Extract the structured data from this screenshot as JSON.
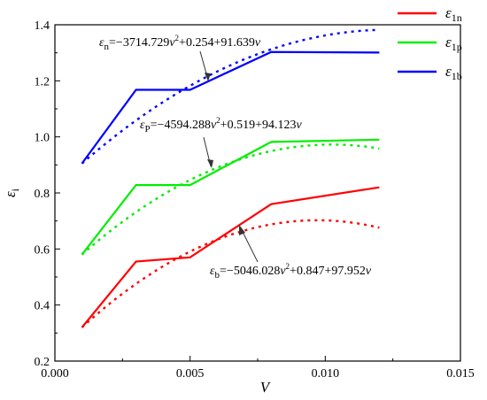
{
  "chart_data": {
    "type": "line",
    "xlabel": "V",
    "ylabel": {
      "base": "ε",
      "sub": "i"
    },
    "xlim": [
      0.0,
      0.015
    ],
    "ylim": [
      0.2,
      1.4
    ],
    "xticks": [
      0.0,
      0.005,
      0.01,
      0.015
    ],
    "xtick_labels": [
      "0.000",
      "0.005",
      "0.010",
      "0.015"
    ],
    "yticks": [
      0.2,
      0.4,
      0.6,
      0.8,
      1.0,
      1.2,
      1.4
    ],
    "ytick_labels": [
      "0.2",
      "0.4",
      "0.6",
      "0.8",
      "1.0",
      "1.2",
      "1.4"
    ],
    "grid": false,
    "legend_position": "top-right, outside plot",
    "series": [
      {
        "name": "ε1n",
        "legend": {
          "base": "ε",
          "sub": "1n"
        },
        "color": "#ff0000",
        "x": [
          0.001,
          0.003,
          0.005,
          0.008,
          0.012
        ],
        "y": [
          0.32,
          0.555,
          0.57,
          0.76,
          0.82
        ],
        "fit": {
          "a": -5046.028,
          "b": 0.847,
          "c": 97.952,
          "x_range": [
            0.001,
            0.012
          ],
          "label": {
            "lhs": "ε",
            "lhs_sub": "b",
            "p1": "=−5046.028",
            "v": "v",
            "sup": "2",
            "p2": "+0.847+97.952"
          }
        }
      },
      {
        "name": "ε1p",
        "legend": {
          "base": "ε",
          "sub": "1p"
        },
        "color": "#00ee00",
        "x": [
          0.001,
          0.003,
          0.005,
          0.008,
          0.012
        ],
        "y": [
          0.58,
          0.828,
          0.828,
          0.982,
          0.99
        ],
        "fit": {
          "a": -4594.288,
          "b": 0.519,
          "c": 94.123,
          "x_range": [
            0.001,
            0.012
          ],
          "label": {
            "lhs": "ε",
            "lhs_sub": "P",
            "p1": "=−4594.288",
            "v": "v",
            "sup": "2",
            "p2": "+0.519+94.123"
          }
        }
      },
      {
        "name": "ε1b",
        "legend": {
          "base": "ε",
          "sub": "1b"
        },
        "color": "#0000ff",
        "x": [
          0.001,
          0.003,
          0.005,
          0.008,
          0.012
        ],
        "y": [
          0.905,
          1.168,
          1.168,
          1.303,
          1.301
        ],
        "fit": {
          "a": -3714.729,
          "b": 0.254,
          "c": 91.639,
          "x_range": [
            0.001,
            0.012
          ],
          "label": {
            "lhs": "ε",
            "lhs_sub": "n",
            "p1": "=−3714.729",
            "v": "v",
            "sup": "2",
            "p2": "+0.254+91.639"
          }
        }
      }
    ]
  }
}
